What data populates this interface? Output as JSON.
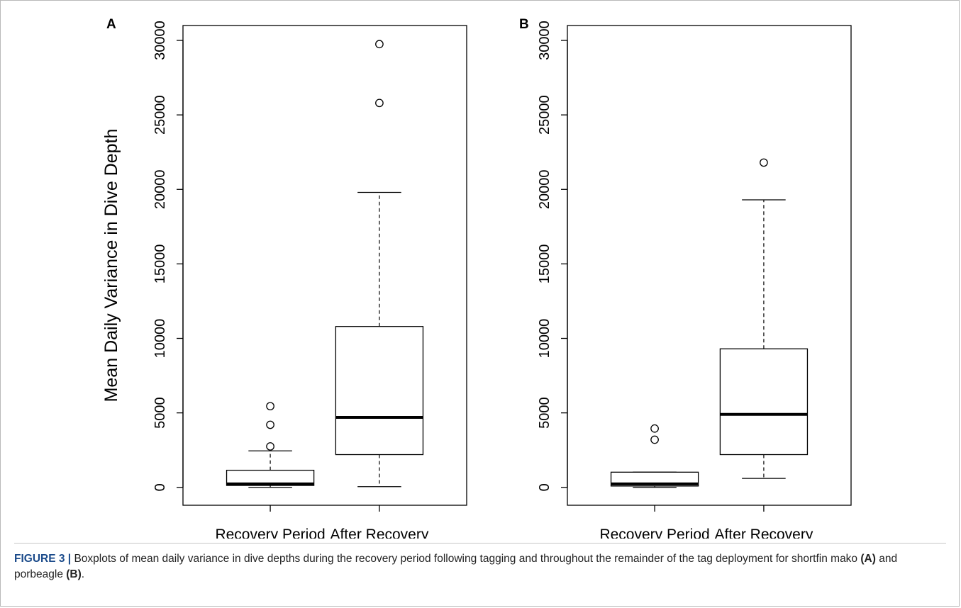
{
  "caption": {
    "label": "FIGURE 3 |",
    "text_1": "Boxplots of mean daily variance in dive depths during the recovery period following tagging and throughout the remainder of the tag deployment for shortfin mako ",
    "bold_a": "(A)",
    "text_2": " and porbeagle ",
    "bold_b": "(B)",
    "text_3": "."
  },
  "chart_data": [
    {
      "type": "box",
      "panel": "A",
      "ylabel": "Mean Daily Variance in Dive Depth",
      "xlabel": "",
      "ylim": [
        -1200,
        31000
      ],
      "yticks": [
        0,
        5000,
        10000,
        15000,
        20000,
        25000,
        30000
      ],
      "yticklabels": [
        "0",
        "5000",
        "10000",
        "15000",
        "20000",
        "25000",
        "30000"
      ],
      "categories": [
        "Recovery Period",
        "After Recovery"
      ],
      "boxes": [
        {
          "min": 0,
          "q1": 130,
          "median": 230,
          "q3": 1150,
          "max": 2450,
          "outliers": [
            2750,
            4200,
            5450
          ]
        },
        {
          "min": 50,
          "q1": 2200,
          "median": 4700,
          "q3": 10800,
          "max": 19800,
          "outliers": [
            25800,
            29750
          ]
        }
      ],
      "grid": false
    },
    {
      "type": "box",
      "panel": "B",
      "ylabel": "",
      "xlabel": "",
      "ylim": [
        -1200,
        31000
      ],
      "yticks": [
        0,
        5000,
        10000,
        15000,
        20000,
        25000,
        30000
      ],
      "yticklabels": [
        "0",
        "5000",
        "10000",
        "15000",
        "20000",
        "25000",
        "30000"
      ],
      "categories": [
        "Recovery Period",
        "After Recovery"
      ],
      "boxes": [
        {
          "min": 0,
          "q1": 90,
          "median": 230,
          "q3": 1020,
          "max": 1020,
          "outliers": [
            3200,
            3950
          ]
        },
        {
          "min": 600,
          "q1": 2200,
          "median": 4900,
          "q3": 9300,
          "max": 19300,
          "outliers": [
            21800
          ]
        }
      ],
      "grid": false
    }
  ]
}
